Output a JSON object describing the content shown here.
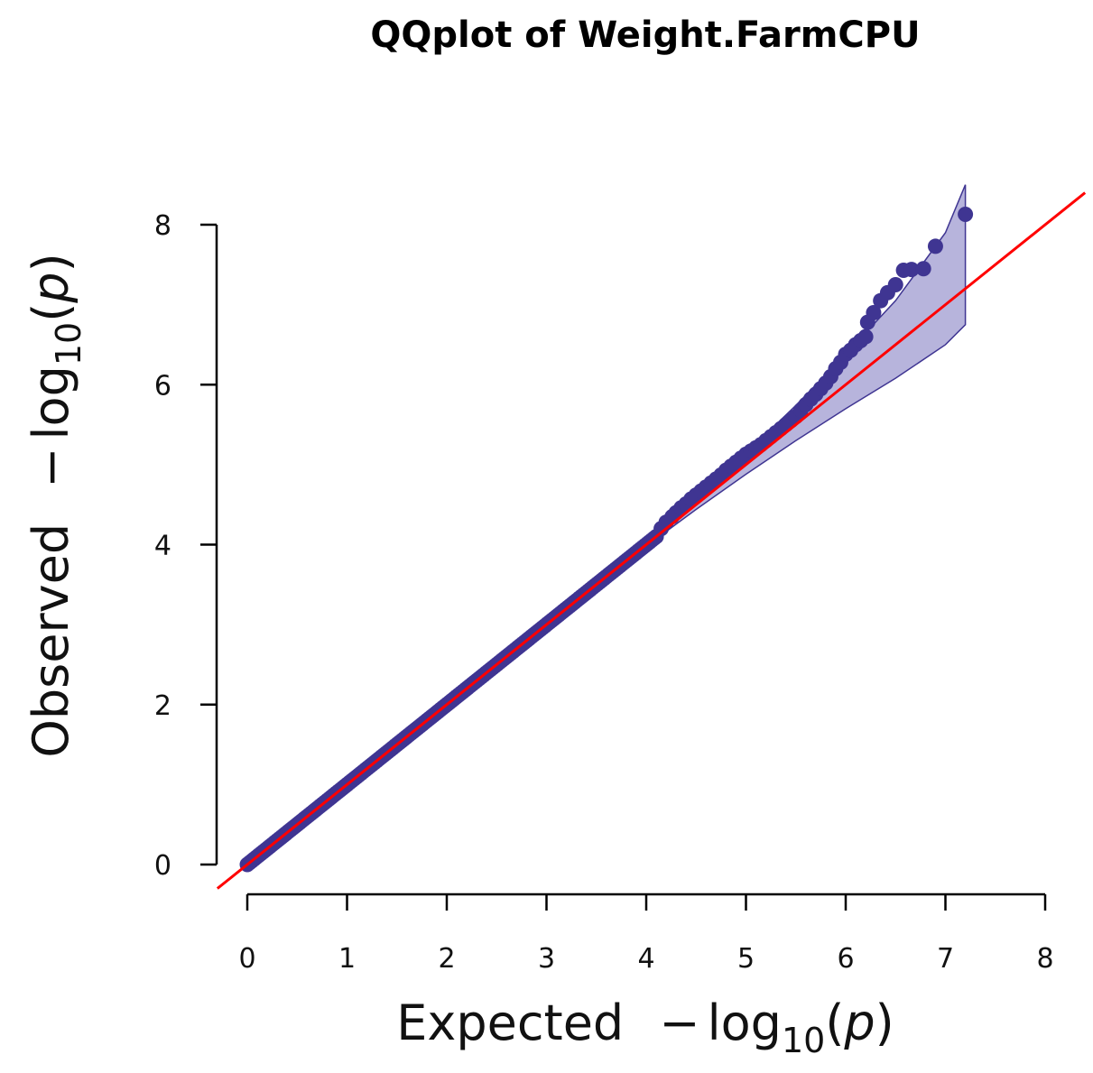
{
  "chart_data": {
    "type": "scatter",
    "title": "QQplot of Weight.FarmCPU",
    "xlabel": {
      "prefix": "Expected",
      "func": "log",
      "sub": "10",
      "arg": "p"
    },
    "ylabel": {
      "prefix": "Observed",
      "func": "log",
      "sub": "10",
      "arg": "p"
    },
    "xlim": [
      0,
      8
    ],
    "ylim": [
      0,
      8
    ],
    "xticks": [
      "0",
      "1",
      "2",
      "3",
      "4",
      "5",
      "6",
      "7",
      "8"
    ],
    "yticks": [
      "0",
      "2",
      "4",
      "6",
      "8"
    ],
    "grid": false,
    "legend": "none",
    "colors": {
      "points": "#3f3592",
      "band_fill": "#9f9bd0",
      "band_stroke": "#3f3592",
      "reference_line": "#ff0000"
    },
    "reference_line": {
      "from": [
        -0.3,
        -0.3
      ],
      "to": [
        8.4,
        8.4
      ]
    },
    "confidence_band": {
      "upper": [
        [
          4.0,
          4.02
        ],
        [
          4.5,
          4.57
        ],
        [
          5.0,
          5.14
        ],
        [
          5.5,
          5.74
        ],
        [
          6.0,
          6.38
        ],
        [
          6.5,
          7.05
        ],
        [
          7.0,
          7.9
        ],
        [
          7.2,
          8.5
        ]
      ],
      "lower": [
        [
          4.0,
          3.98
        ],
        [
          4.5,
          4.44
        ],
        [
          5.0,
          4.88
        ],
        [
          5.5,
          5.3
        ],
        [
          6.0,
          5.7
        ],
        [
          6.5,
          6.08
        ],
        [
          7.0,
          6.5
        ],
        [
          7.2,
          6.75
        ]
      ]
    },
    "points_dense": {
      "x_from": 0.0,
      "x_to": 4.1,
      "offset": 0.0
    },
    "points": [
      [
        4.15,
        4.2
      ],
      [
        4.2,
        4.28
      ],
      [
        4.26,
        4.35
      ],
      [
        4.3,
        4.4
      ],
      [
        4.35,
        4.46
      ],
      [
        4.4,
        4.51
      ],
      [
        4.45,
        4.57
      ],
      [
        4.5,
        4.62
      ],
      [
        4.55,
        4.67
      ],
      [
        4.6,
        4.72
      ],
      [
        4.65,
        4.77
      ],
      [
        4.7,
        4.82
      ],
      [
        4.75,
        4.87
      ],
      [
        4.8,
        4.93
      ],
      [
        4.85,
        4.98
      ],
      [
        4.9,
        5.03
      ],
      [
        4.95,
        5.08
      ],
      [
        5.0,
        5.13
      ],
      [
        5.05,
        5.17
      ],
      [
        5.1,
        5.21
      ],
      [
        5.15,
        5.25
      ],
      [
        5.2,
        5.3
      ],
      [
        5.25,
        5.35
      ],
      [
        5.3,
        5.4
      ],
      [
        5.35,
        5.45
      ],
      [
        5.4,
        5.5
      ],
      [
        5.45,
        5.55
      ],
      [
        5.5,
        5.6
      ],
      [
        5.55,
        5.68
      ],
      [
        5.6,
        5.75
      ],
      [
        5.65,
        5.82
      ],
      [
        5.7,
        5.88
      ],
      [
        5.75,
        5.95
      ],
      [
        5.8,
        6.02
      ],
      [
        5.85,
        6.1
      ],
      [
        5.9,
        6.2
      ],
      [
        5.95,
        6.28
      ],
      [
        6.0,
        6.38
      ],
      [
        6.05,
        6.43
      ],
      [
        6.1,
        6.5
      ],
      [
        6.15,
        6.55
      ],
      [
        6.2,
        6.6
      ],
      [
        6.22,
        6.78
      ],
      [
        6.28,
        6.9
      ],
      [
        6.35,
        7.05
      ],
      [
        6.42,
        7.15
      ],
      [
        6.5,
        7.25
      ],
      [
        6.58,
        7.43
      ],
      [
        6.66,
        7.44
      ],
      [
        6.78,
        7.45
      ],
      [
        6.9,
        7.73
      ],
      [
        7.2,
        8.13
      ]
    ]
  }
}
